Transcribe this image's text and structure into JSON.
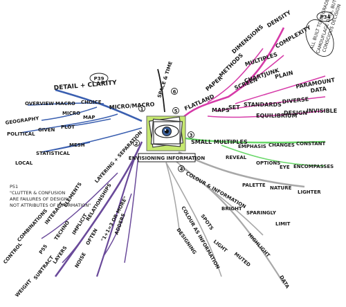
{
  "center": {
    "label": "ENVISIONING INFORMATION"
  },
  "branches": {
    "micro_macro": {
      "color": "#3a5fb0",
      "number": "1",
      "root": "MICRO/MACRO",
      "page_ref": "P39",
      "words": [
        "DETAIL + CLARITY",
        "OVERVIEW",
        "MACRO",
        "CHOICE",
        "MICRO",
        "GEOGRAPHY",
        "POLITICAL",
        "GIVEN",
        "PLOT",
        "MAP",
        "LOCAL",
        "STATISTICAL",
        "MESH"
      ]
    },
    "layering": {
      "color": "#6a4a9a",
      "number": "2",
      "root": "LAYERING + SEPARATION",
      "words": [
        "CONTROL",
        "COMBINATIONS",
        "INTERACT",
        "ELEMENTS",
        "RELATIONSHIPS",
        "P55",
        "TECHNO",
        "IMPLICIT",
        "WEIGHT",
        "SUBTRACT",
        "LAYERS",
        "NOISE",
        "OFTEN",
        "\"1+1=3 OR MORE\"",
        "ADDERS"
      ],
      "note": [
        "P51",
        "\"CLUTTER & CONFUSION",
        "ARE FAILURES OF DESIGN",
        "NOT ATTRIBUTES OF INFORMATION\""
      ]
    },
    "small_multiples": {
      "color": "#6ad86a",
      "number": "3",
      "root": "SMALL MULTIPLES",
      "words": [
        "EMPHASIS",
        "CHANGES",
        "CONSTANT",
        "REVEAL",
        "OPTIONS",
        "EYE",
        "ENCOMPASSES"
      ]
    },
    "colour": {
      "color": "#a8a8a8",
      "number": "4",
      "root": "COLOUR & INFORMATION",
      "words": [
        "PALETTE",
        "NATURE",
        "LIGHTER",
        "BRIGHT",
        "SPARINGLY",
        "LIMIT",
        "COLOUR AS INFORMATION",
        "DESIGNING",
        "SPOTS",
        "LIGHT",
        "MUTED",
        "HIGHLIGHT",
        "DATA"
      ]
    },
    "flatland": {
      "color": "#d63aa8",
      "number": "5",
      "root": "FLATLAND",
      "page_ref": "P34",
      "callout": [
        "ALL BUILT TO DEGRADE",
        "CAMOUFLAGE DATA, BUT NEVER",
        "CONSCIOUS DECISION"
      ],
      "words": [
        "PAPER",
        "METHODS",
        "DIMENSIONS",
        "DENSITY",
        "COMPLEXITY",
        "MULTIPLES",
        "PLAIN",
        "SCREEN",
        "CHARTJUNK",
        "MAPS",
        "SET",
        "STANDARDS",
        "DIVERSE",
        "DATA",
        "PARAMOUNT",
        "EQUILIBRIUM",
        "DESIGN",
        "INVISIBLE"
      ]
    },
    "space_time": {
      "color": "#1a1a1a",
      "number": "6",
      "root": "SPACE & TIME"
    }
  }
}
